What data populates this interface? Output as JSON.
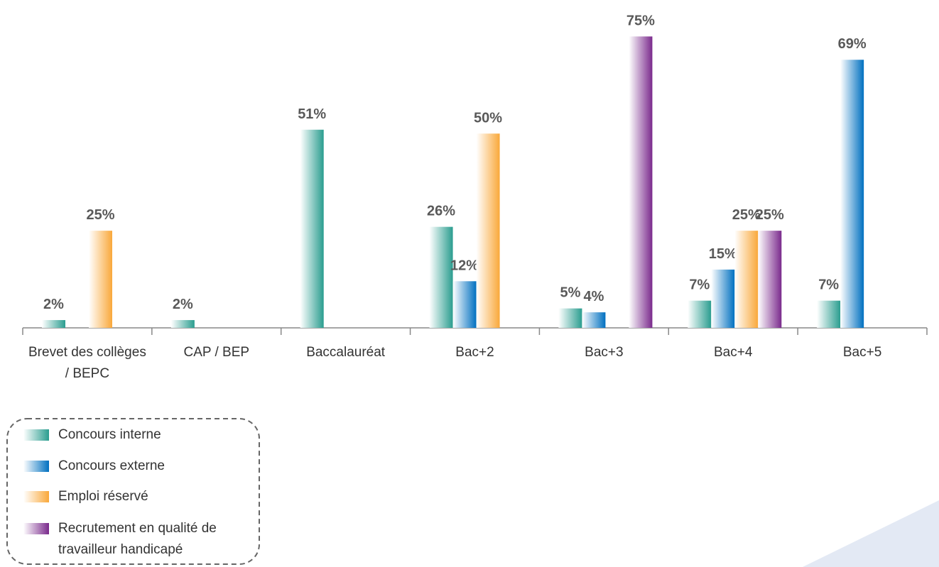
{
  "chart_data": {
    "type": "bar",
    "categories": [
      "Brevet des collèges / BEPC",
      "CAP / BEP",
      "Baccalauréat",
      "Bac+2",
      "Bac+3",
      "Bac+4",
      "Bac+5"
    ],
    "series": [
      {
        "name": "Concours interne",
        "color": "#2a9d8f",
        "values": [
          2,
          2,
          51,
          26,
          5,
          7,
          7
        ],
        "value_labels": [
          "2%",
          "2%",
          "51%",
          "26%",
          "5%",
          "7%",
          "7%"
        ]
      },
      {
        "name": "Concours externe",
        "color": "#0070c0",
        "values": [
          null,
          null,
          null,
          12,
          4,
          15,
          69
        ],
        "value_labels": [
          null,
          null,
          null,
          "12%",
          "4%",
          "15%",
          "69%"
        ]
      },
      {
        "name": "Emploi réservé",
        "color": "#f9a83a",
        "values": [
          25,
          null,
          null,
          50,
          null,
          25,
          null
        ],
        "value_labels": [
          "25%",
          null,
          null,
          "50%",
          null,
          "25%",
          null
        ]
      },
      {
        "name": "Recrutement en qualité de travailleur handicapé",
        "color": "#7a2a8c",
        "values": [
          null,
          null,
          null,
          null,
          75,
          25,
          null
        ],
        "value_labels": [
          null,
          null,
          null,
          null,
          "75%",
          "25%",
          null
        ]
      }
    ],
    "ylim": [
      0,
      80
    ]
  }
}
